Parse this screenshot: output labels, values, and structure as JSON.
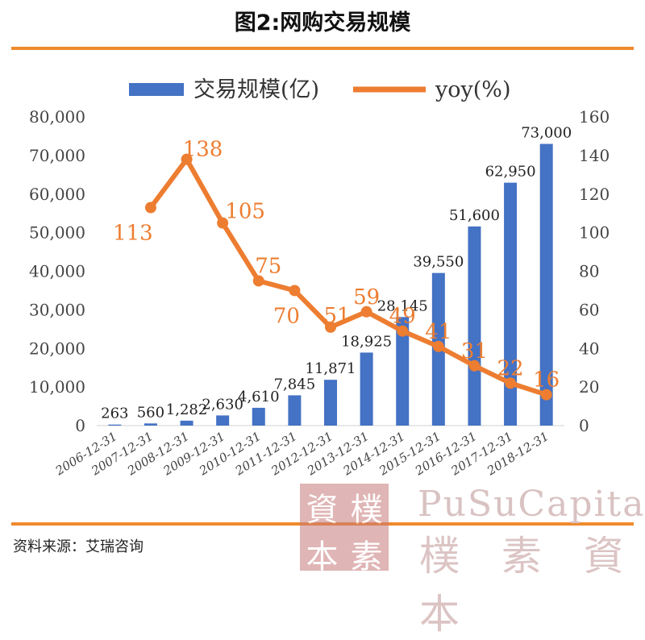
{
  "header": {
    "title": "图2:网购交易规模"
  },
  "footer": {
    "source": "资料来源：艾瑞咨询"
  },
  "watermark": {
    "seal": [
      "資",
      "樸",
      "本",
      "素"
    ],
    "english": "PuSuCapital",
    "chinese": "樸 素 資 本"
  },
  "colors": {
    "bar": "#4472c4",
    "line": "#ed7d31",
    "accent_rule": "#ef8a2e"
  },
  "chart_data": {
    "type": "bar",
    "categories": [
      "2006-12-31",
      "2007-12-31",
      "2008-12-31",
      "2009-12-31",
      "2010-12-31",
      "2011-12-31",
      "2012-12-31",
      "2013-12-31",
      "2014-12-31",
      "2015-12-31",
      "2016-12-31",
      "2017-12-31",
      "2018-12-31"
    ],
    "series": [
      {
        "name": "交易规模(亿)",
        "type": "bar",
        "axis": "left",
        "values": [
          263,
          560,
          1282,
          2630,
          4610,
          7845,
          11871,
          18925,
          28145,
          39550,
          51600,
          62950,
          73000
        ],
        "labels": [
          "263",
          "560",
          "1,282",
          "2,630",
          "4,610",
          "7,845",
          "11,871",
          "18,925",
          "28,145",
          "39,550",
          "51,600",
          "62,950",
          "73,000"
        ]
      },
      {
        "name": "yoy(%)",
        "type": "line",
        "axis": "right",
        "values": [
          null,
          113,
          138,
          105,
          75,
          70,
          51,
          59,
          49,
          41,
          31,
          22,
          16
        ],
        "labels": [
          "",
          "113",
          "138",
          "105",
          "75",
          "70",
          "51",
          "59",
          "49",
          "41",
          "31",
          "22",
          "16"
        ]
      }
    ],
    "y_left": {
      "ylim": [
        0,
        80000
      ],
      "ticks": [
        "0",
        "10,000",
        "20,000",
        "30,000",
        "40,000",
        "50,000",
        "60,000",
        "70,000",
        "80,000"
      ]
    },
    "y_right": {
      "ylim": [
        0,
        160
      ],
      "ticks": [
        "0",
        "20",
        "40",
        "60",
        "80",
        "100",
        "120",
        "140",
        "160"
      ]
    },
    "legend": "top",
    "grid": false
  }
}
